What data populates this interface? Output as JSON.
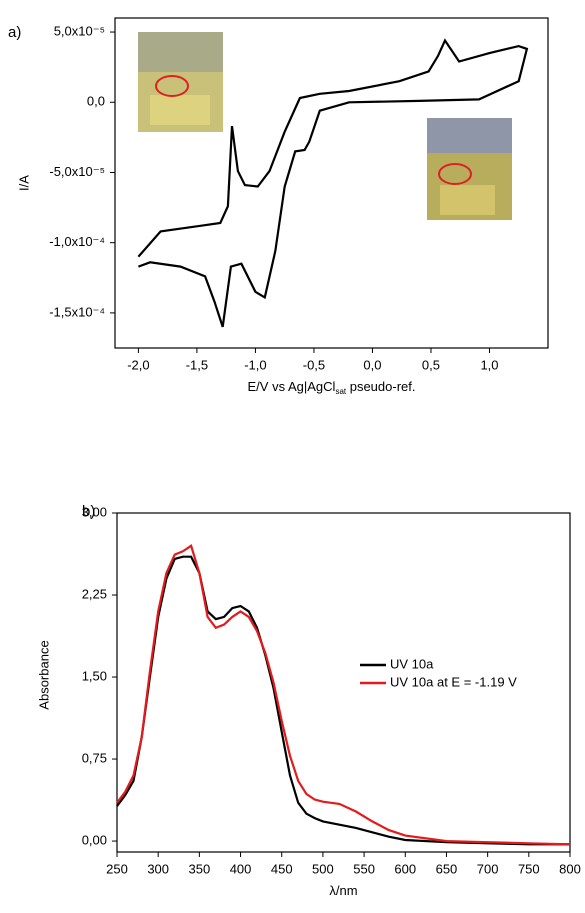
{
  "chart_data": [
    {
      "type": "line",
      "panel_label": "a)",
      "x_label": [
        "E/V vs Ag|AgCl",
        "sat",
        " pseudo-ref."
      ],
      "y_label": "I/A",
      "color": "#000000",
      "x": [
        -2.0,
        -1.81,
        -1.47,
        -1.3,
        -1.235,
        -1.2,
        -1.15,
        -1.09,
        -0.98,
        -0.88,
        -0.75,
        -0.62,
        -0.45,
        -0.2,
        0.23,
        0.48,
        0.56,
        0.62,
        0.74,
        1.0,
        1.25,
        1.32,
        1.25,
        0.91,
        0.4,
        -0.2,
        -0.45,
        -0.54,
        -0.58,
        -0.66,
        -0.75,
        -0.83,
        -0.92,
        -1.0,
        -1.12,
        -1.21,
        -1.28,
        -1.35,
        -1.43,
        -1.64,
        -1.9,
        -2.0
      ],
      "values": [
        -0.00011,
        -9.2e-05,
        -8.8e-05,
        -8.6e-05,
        -7.4e-05,
        -1.7e-05,
        -4.9e-05,
        -5.9e-05,
        -6e-05,
        -4.9e-05,
        -2.1e-05,
        3e-06,
        6e-06,
        8e-06,
        1.5e-05,
        2.2e-05,
        3.3e-05,
        4.4e-05,
        2.9e-05,
        3.5e-05,
        4e-05,
        3.8e-05,
        1.5e-05,
        2e-06,
        1e-06,
        0,
        -6e-06,
        -2.8e-05,
        -3.4e-05,
        -3.5e-05,
        -6e-05,
        -0.000106,
        -0.000139,
        -0.000135,
        -0.000115,
        -0.000117,
        -0.00016,
        -0.000142,
        -0.000124,
        -0.000117,
        -0.000114,
        -0.000117
      ],
      "xlim": [
        -2.2,
        1.5
      ],
      "xticks": [
        {
          "value": -2.0,
          "label": "-2,0"
        },
        {
          "value": -1.5,
          "label": "-1,5"
        },
        {
          "value": -1.0,
          "label": "-1,0"
        },
        {
          "value": -0.5,
          "label": "-0,5"
        },
        {
          "value": 0,
          "label": "0,0"
        },
        {
          "value": 0.5,
          "label": "0,5"
        },
        {
          "value": 1.0,
          "label": "1,0"
        }
      ],
      "ylim": [
        -0.000175,
        6e-05
      ],
      "yticks": [
        {
          "value": 5e-05,
          "label": "5,0x10⁻⁵"
        },
        {
          "value": 0,
          "label": "0,0"
        },
        {
          "value": -5e-05,
          "label": "-5,0x10⁻⁵"
        },
        {
          "value": -0.0001,
          "label": "-1,0x10⁻⁴"
        },
        {
          "value": -0.00015,
          "label": "-1,5x10⁻⁴"
        }
      ]
    },
    {
      "type": "line",
      "panel_label": "b)",
      "x_label": [
        "λ/nm"
      ],
      "y_label": "Absorbance",
      "x": [
        250,
        260,
        270,
        280,
        290,
        300,
        310,
        320,
        330,
        340,
        350,
        360,
        370,
        380,
        390,
        400,
        410,
        420,
        430,
        440,
        450,
        460,
        470,
        480,
        490,
        500,
        520,
        540,
        560,
        580,
        600,
        650,
        700,
        750,
        800
      ],
      "series": [
        {
          "name": "UV 10a",
          "color": "#000000",
          "values": [
            0.32,
            0.42,
            0.55,
            0.95,
            1.5,
            2.05,
            2.4,
            2.58,
            2.6,
            2.6,
            2.45,
            2.1,
            2.03,
            2.05,
            2.13,
            2.15,
            2.1,
            1.95,
            1.7,
            1.4,
            1.0,
            0.6,
            0.35,
            0.25,
            0.21,
            0.18,
            0.15,
            0.12,
            0.08,
            0.04,
            0.01,
            -0.01,
            -0.02,
            -0.03,
            -0.03
          ]
        },
        {
          "name": "UV 10a at E = -1.19 V",
          "color": "#e41a1c",
          "values": [
            0.35,
            0.45,
            0.6,
            0.95,
            1.55,
            2.1,
            2.45,
            2.62,
            2.65,
            2.7,
            2.45,
            2.05,
            1.95,
            1.98,
            2.05,
            2.1,
            2.05,
            1.92,
            1.72,
            1.45,
            1.1,
            0.78,
            0.55,
            0.43,
            0.38,
            0.36,
            0.34,
            0.27,
            0.18,
            0.1,
            0.05,
            0.0,
            -0.01,
            -0.02,
            -0.03
          ]
        }
      ],
      "xlim": [
        250,
        800
      ],
      "xticks": [
        250,
        300,
        350,
        400,
        450,
        500,
        550,
        600,
        650,
        700,
        750,
        800
      ],
      "ylim": [
        -0.1,
        3.0
      ],
      "yticks": [
        {
          "value": 0,
          "label": "0,00"
        },
        {
          "value": 0.75,
          "label": "0,75"
        },
        {
          "value": 1.5,
          "label": "1,50"
        },
        {
          "value": 2.25,
          "label": "2,25"
        },
        {
          "value": 3.0,
          "label": "3,00"
        }
      ]
    }
  ]
}
